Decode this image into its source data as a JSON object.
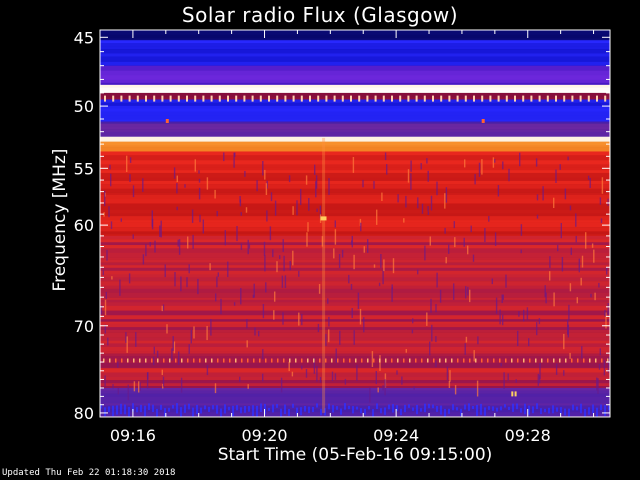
{
  "chart_data": {
    "type": "heatmap",
    "title": "Solar radio Flux (Glasgow)",
    "xlabel": "Start Time (05-Feb-16 09:15:00)",
    "ylabel": "Frequency [MHz]",
    "x_ticks": [
      "09:16",
      "09:20",
      "09:24",
      "09:28"
    ],
    "x_tick_minutes": [
      1,
      5,
      9,
      13
    ],
    "x_range_minutes": [
      0,
      15.5
    ],
    "y_ticks": [
      45,
      50,
      55,
      60,
      70,
      80
    ],
    "y_range_mhz": [
      44.5,
      80.5
    ],
    "bands": [
      {
        "from": 44.5,
        "to": 45.2,
        "level": "dark-blue"
      },
      {
        "from": 45.2,
        "to": 47.0,
        "level": "blue"
      },
      {
        "from": 47.0,
        "to": 48.4,
        "level": "blue-purple"
      },
      {
        "from": 48.4,
        "to": 49.0,
        "level": "white"
      },
      {
        "from": 49.0,
        "to": 49.5,
        "level": "dark-red"
      },
      {
        "from": 49.5,
        "to": 51.2,
        "level": "blue"
      },
      {
        "from": 51.2,
        "to": 52.4,
        "level": "purple-blue"
      },
      {
        "from": 52.4,
        "to": 52.8,
        "level": "white"
      },
      {
        "from": 52.8,
        "to": 53.6,
        "level": "orange"
      },
      {
        "from": 53.6,
        "to": 61.0,
        "level": "red"
      },
      {
        "from": 61.0,
        "to": 77.0,
        "level": "red-purple"
      },
      {
        "from": 77.0,
        "to": 80.5,
        "level": "purple-blue"
      }
    ],
    "grid": false
  },
  "colors": {
    "background": "#000000",
    "text": "#ffffff",
    "low": "#0000c8",
    "mid": "#d01010",
    "high": "#ffffff"
  },
  "labels": {
    "title": "Solar radio Flux (Glasgow)",
    "xlabel": "Start Time (05-Feb-16 09:15:00)",
    "ylabel": "Frequency [MHz]",
    "footer": "Updated Thu Feb 22 01:18:30 2018"
  }
}
